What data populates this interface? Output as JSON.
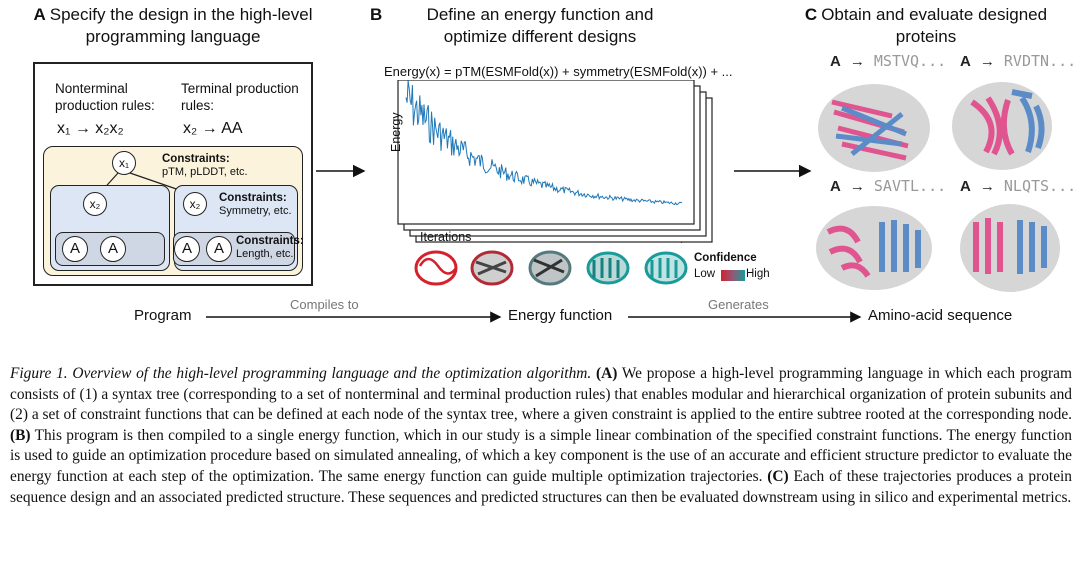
{
  "panels": {
    "a": {
      "letter": "A",
      "title": "Specify the design in the high-level programming language"
    },
    "b": {
      "letter": "B",
      "title": "Define an energy function and optimize different designs"
    },
    "c": {
      "letter": "C",
      "title": "Obtain and evaluate designed proteins"
    }
  },
  "program": {
    "nonterminal_label": "Nonterminal production rules:",
    "terminal_label": "Terminal production rules:",
    "nonterminal_rule": "x₁ → x₂x₂",
    "terminal_rule": "x₂ → AA",
    "root_node": "x₁",
    "mid_node": "x₂",
    "leaf_node": "A",
    "constraint_root_title": "Constraints:",
    "constraint_root_body": "pTM, pLDDT, etc.",
    "constraint_mid_title": "Constraints:",
    "constraint_mid_body": "Symmetry, etc.",
    "constraint_leaf_title": "Constraints:",
    "constraint_leaf_body": "Length, etc."
  },
  "energy": {
    "equation": "Energy(x) = pTM(ESMFold(x)) + symmetry(ESMFold(x)) + ...",
    "ylabel": "Energy",
    "xlabel": "Iterations",
    "confidence_title": "Confidence",
    "confidence_low": "Low",
    "confidence_high": "High",
    "colors": {
      "trace": "#1f78b8",
      "low": "#d6202c",
      "high": "#1a9a99"
    }
  },
  "designs": [
    {
      "chain": "A",
      "sequence": "MSTVQ..."
    },
    {
      "chain": "A",
      "sequence": "RVDTN..."
    },
    {
      "chain": "A",
      "sequence": "SAVTL..."
    },
    {
      "chain": "A",
      "sequence": "NLQTS..."
    }
  ],
  "flow": {
    "program": "Program",
    "compiles_to": "Compiles to",
    "energy_function": "Energy function",
    "generates": "Generates",
    "amino_acid_sequence": "Amino-acid sequence"
  },
  "caption": {
    "label": "Figure 1. Overview of the high-level programming language and the optimization algorithm.",
    "part_a_tag": "(A)",
    "part_a": " We propose a high-level programming language in which each program consists of (1) a syntax tree (corresponding to a set of nonterminal and terminal production rules) that enables modular and hierarchical organization of protein subunits and (2) a set of constraint functions that can be defined at each node of the syntax tree, where a given constraint is applied to the entire subtree rooted at the corresponding node. ",
    "part_b_tag": "(B)",
    "part_b": " This program is then compiled to a single energy function, which in our study is a simple linear combination of the specified constraint functions. The energy function is used to guide an optimization procedure based on simulated annealing, of which a key component is the use of an accurate and efficient structure predictor to evaluate the energy function at each step of the optimization. The same energy function can guide multiple optimization trajectories. ",
    "part_c_tag": "(C)",
    "part_c": " Each of these trajectories produces a protein sequence design and an associated predicted structure. These sequences and predicted structures can then be evaluated downstream using in silico and experimental metrics."
  }
}
